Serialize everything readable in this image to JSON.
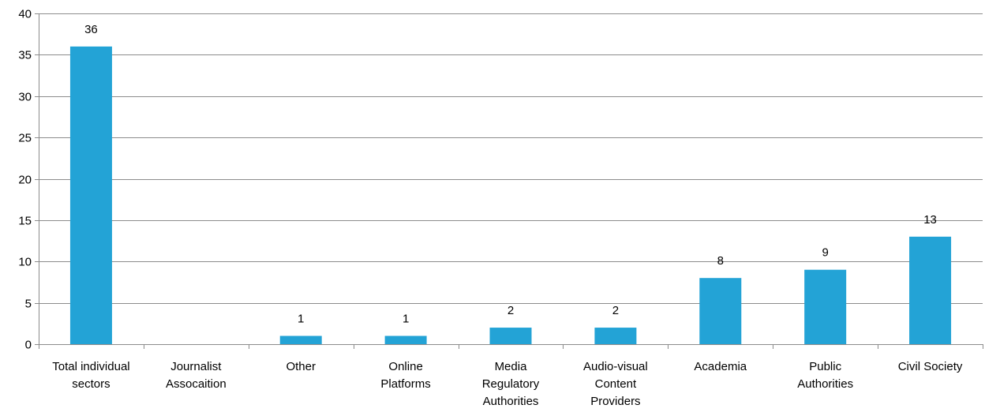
{
  "chart_data": {
    "type": "bar",
    "categories": [
      [
        "Total individual",
        "sectors"
      ],
      [
        "Journalist",
        "Assocaition"
      ],
      [
        "Other"
      ],
      [
        "Online",
        "Platforms"
      ],
      [
        "Media",
        "Regulatory",
        "Authorities"
      ],
      [
        "Audio-visual",
        "Content",
        "Providers"
      ],
      [
        "Academia"
      ],
      [
        "Public",
        "Authorities"
      ],
      [
        "Civil Society"
      ]
    ],
    "values": [
      36,
      null,
      1,
      1,
      2,
      2,
      8,
      9,
      13
    ],
    "data_labels": [
      "36",
      "",
      "1",
      "1",
      "2",
      "2",
      "8",
      "9",
      "13"
    ],
    "ylim": [
      0,
      40
    ],
    "yticks": [
      0,
      5,
      10,
      15,
      20,
      25,
      30,
      35,
      40
    ],
    "grid": true,
    "legend": "none",
    "title": "",
    "xlabel": "",
    "ylabel": "",
    "colors": {
      "bar": "#23A3D6",
      "grid": "#8C8C8C",
      "axis": "#8C8C8C",
      "text": "#000000"
    }
  }
}
